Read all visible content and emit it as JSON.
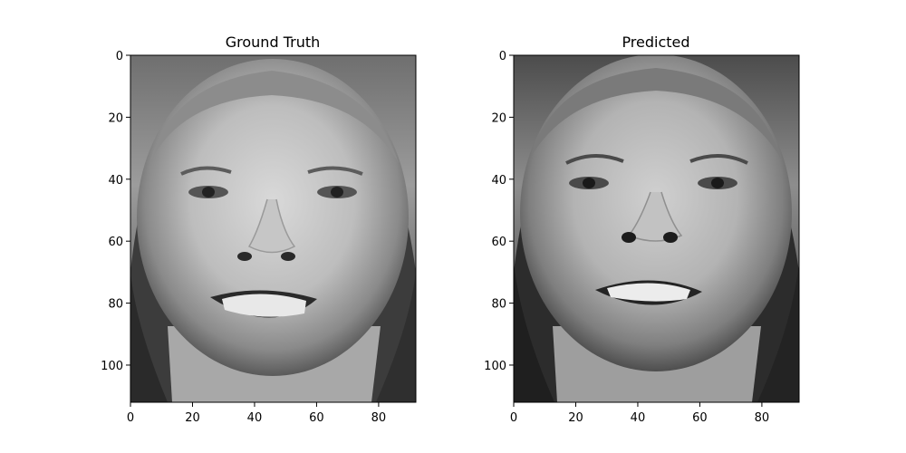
{
  "chart_data": [
    {
      "type": "image",
      "title": "Ground Truth",
      "image_shape": [
        112,
        92
      ],
      "colormap": "gray",
      "xlim": [
        0,
        92
      ],
      "ylim": [
        112,
        0
      ],
      "xticks": [
        0,
        20,
        40,
        60,
        80
      ],
      "yticks": [
        0,
        20,
        40,
        60,
        80,
        100
      ],
      "content": "grayscale face photo, smiling woman with short light hair"
    },
    {
      "type": "image",
      "title": "Predicted",
      "image_shape": [
        112,
        92
      ],
      "colormap": "gray",
      "xlim": [
        0,
        92
      ],
      "ylim": [
        112,
        0
      ],
      "xticks": [
        0,
        20,
        40,
        60,
        80
      ],
      "yticks": [
        0,
        20,
        40,
        60,
        80,
        100
      ],
      "content": "grayscale face photo, woman with short light hair, mouth open showing teeth"
    }
  ]
}
